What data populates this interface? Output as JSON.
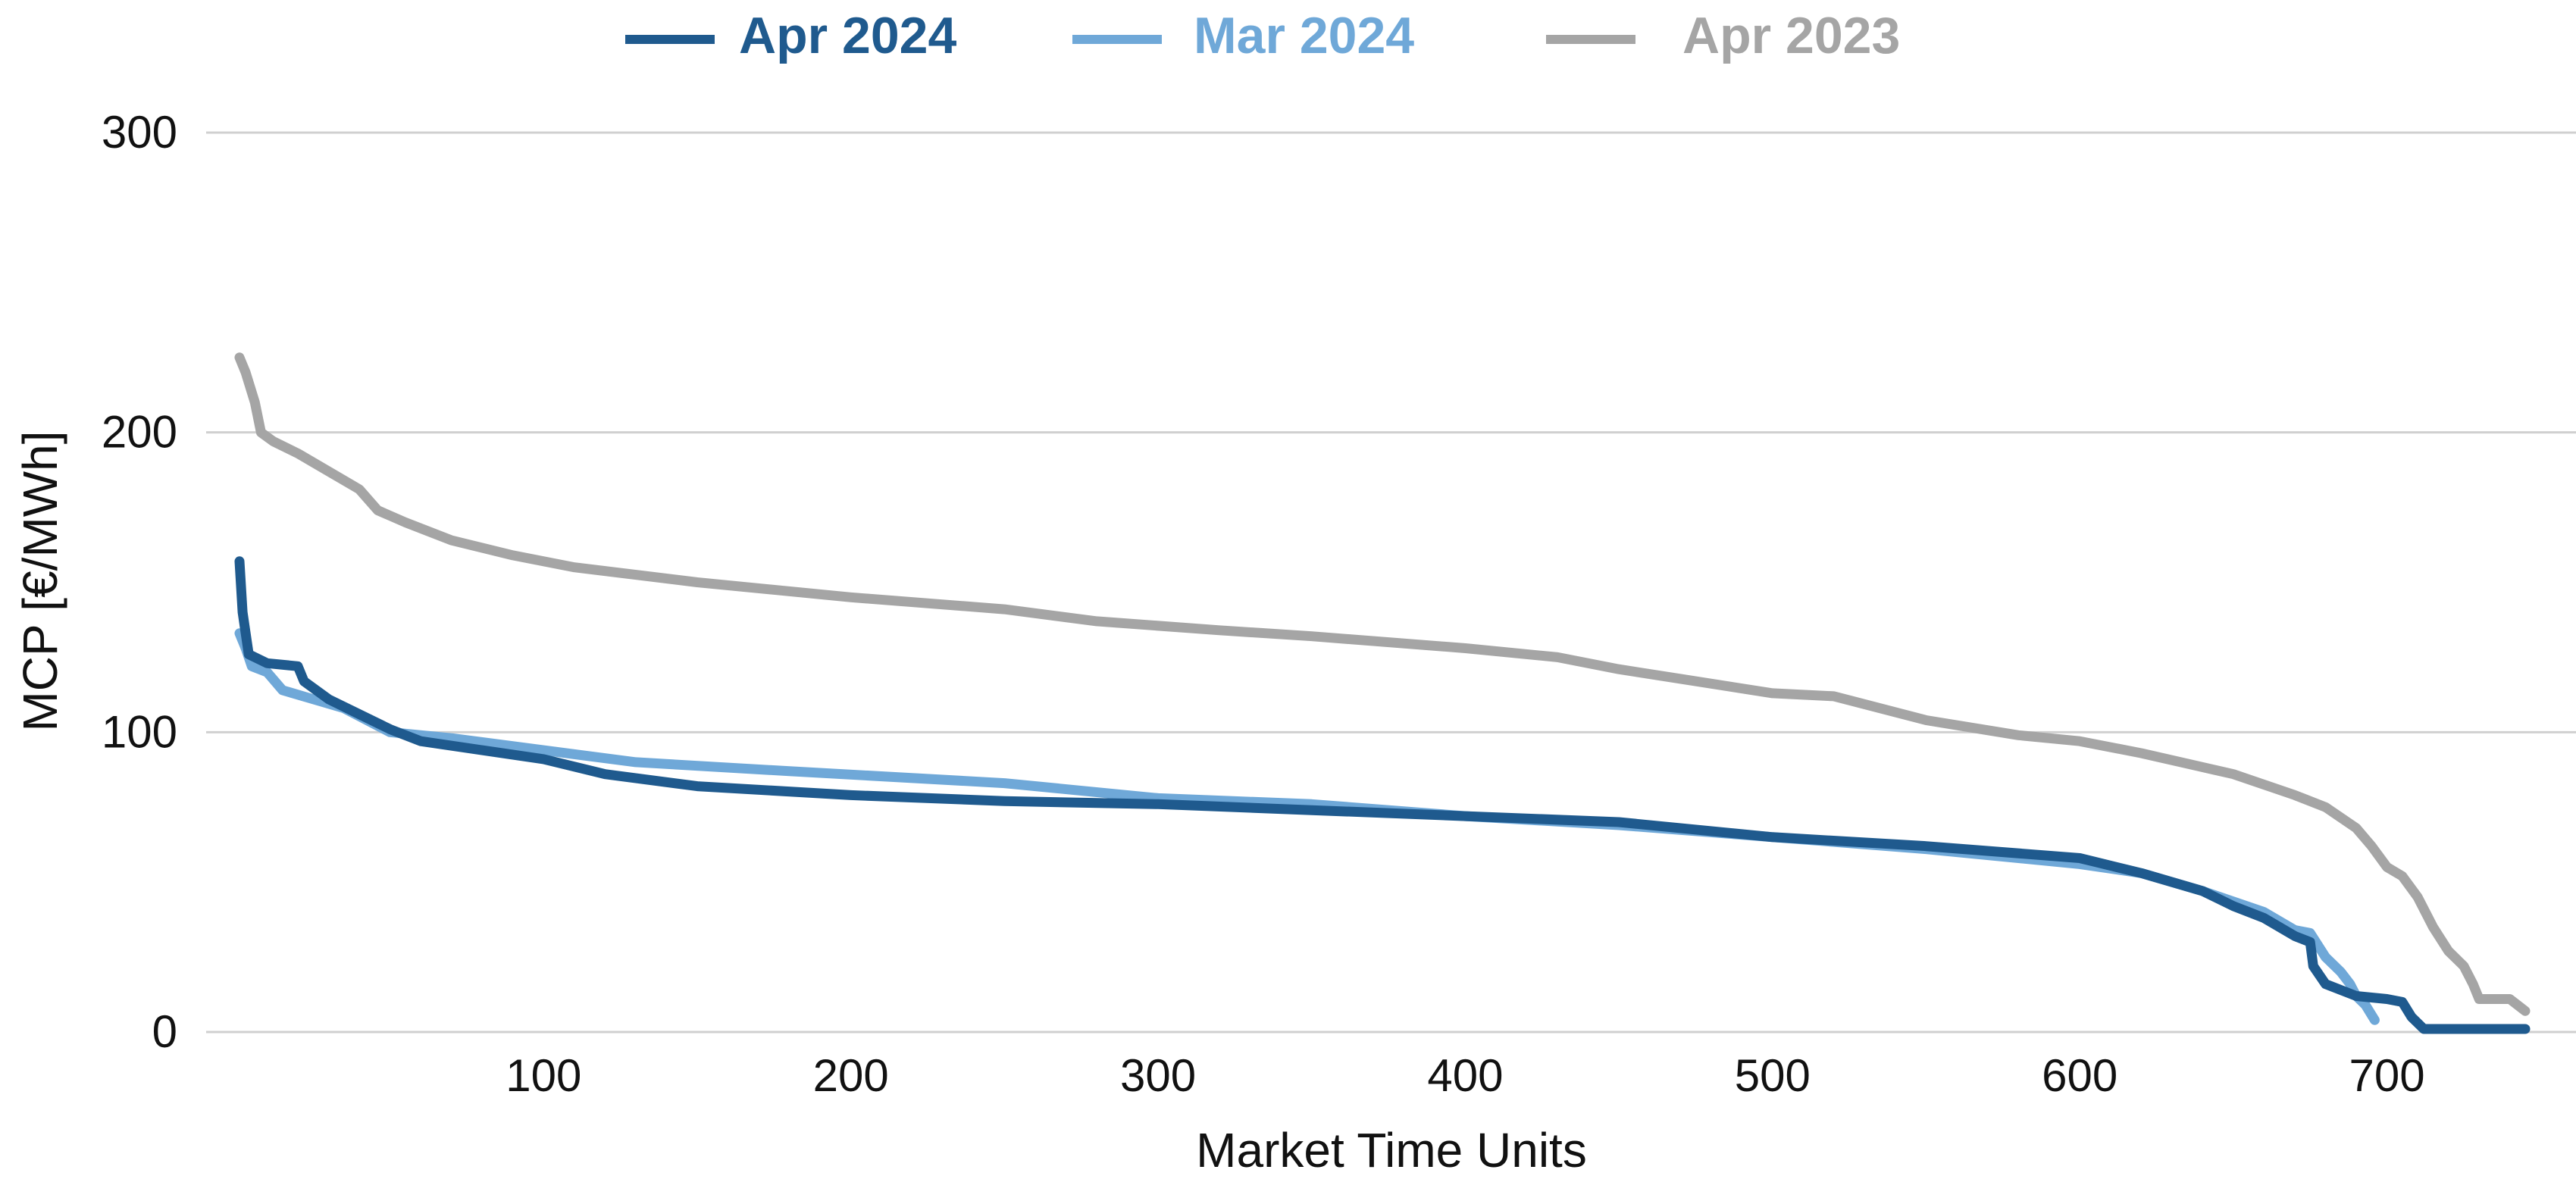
{
  "chart_data": {
    "type": "line",
    "title": "",
    "xlabel": "Market Time Units",
    "ylabel": "MCP [€/MWh]",
    "xlim": [
      1,
      745
    ],
    "ylim": [
      0,
      300
    ],
    "x_ticks": [
      100,
      200,
      300,
      400,
      500,
      600,
      700
    ],
    "x_tick_labels": [
      "100",
      "200",
      "300",
      "400",
      "500",
      "600",
      "700"
    ],
    "y_ticks": [
      0,
      100,
      200,
      300
    ],
    "y_tick_labels": [
      "0",
      "100",
      "200",
      "300"
    ],
    "grid": "horizontal",
    "legend_position": "top-center",
    "series": [
      {
        "name": "Apr 2024",
        "color": "#1f5a8e",
        "points": [
          [
            1,
            157
          ],
          [
            2,
            140
          ],
          [
            4,
            126
          ],
          [
            10,
            123
          ],
          [
            20,
            122
          ],
          [
            22,
            117
          ],
          [
            30,
            111
          ],
          [
            40,
            106
          ],
          [
            50,
            101
          ],
          [
            60,
            97
          ],
          [
            80,
            94
          ],
          [
            100,
            91
          ],
          [
            120,
            86
          ],
          [
            150,
            82
          ],
          [
            200,
            79
          ],
          [
            250,
            77
          ],
          [
            300,
            76
          ],
          [
            350,
            74
          ],
          [
            400,
            72
          ],
          [
            450,
            70
          ],
          [
            500,
            65
          ],
          [
            550,
            62
          ],
          [
            600,
            58
          ],
          [
            620,
            53
          ],
          [
            640,
            47
          ],
          [
            650,
            42
          ],
          [
            660,
            38
          ],
          [
            670,
            32
          ],
          [
            675,
            30
          ],
          [
            676,
            22
          ],
          [
            680,
            16
          ],
          [
            690,
            12
          ],
          [
            700,
            11
          ],
          [
            705,
            10
          ],
          [
            708,
            5
          ],
          [
            712,
            1
          ],
          [
            745,
            1
          ]
        ]
      },
      {
        "name": "Mar 2024",
        "color": "#6fa8d8",
        "points": [
          [
            1,
            133
          ],
          [
            3,
            128
          ],
          [
            5,
            122
          ],
          [
            10,
            120
          ],
          [
            15,
            114
          ],
          [
            25,
            111
          ],
          [
            35,
            108
          ],
          [
            50,
            100
          ],
          [
            70,
            98
          ],
          [
            100,
            94
          ],
          [
            130,
            90
          ],
          [
            180,
            87
          ],
          [
            250,
            83
          ],
          [
            300,
            78
          ],
          [
            350,
            76
          ],
          [
            400,
            72
          ],
          [
            450,
            69
          ],
          [
            500,
            65
          ],
          [
            550,
            61
          ],
          [
            600,
            56
          ],
          [
            620,
            53
          ],
          [
            640,
            47
          ],
          [
            660,
            40
          ],
          [
            670,
            34
          ],
          [
            675,
            33
          ],
          [
            680,
            25
          ],
          [
            685,
            20
          ],
          [
            688,
            16
          ],
          [
            690,
            12
          ],
          [
            693,
            9
          ],
          [
            696,
            4
          ]
        ]
      },
      {
        "name": "Apr 2023",
        "color": "#a5a5a5",
        "points": [
          [
            1,
            225
          ],
          [
            3,
            220
          ],
          [
            6,
            210
          ],
          [
            8,
            200
          ],
          [
            12,
            197
          ],
          [
            20,
            193
          ],
          [
            30,
            187
          ],
          [
            40,
            181
          ],
          [
            46,
            174
          ],
          [
            55,
            170
          ],
          [
            70,
            164
          ],
          [
            90,
            159
          ],
          [
            110,
            155
          ],
          [
            150,
            150
          ],
          [
            200,
            145
          ],
          [
            250,
            141
          ],
          [
            280,
            137
          ],
          [
            320,
            134
          ],
          [
            350,
            132
          ],
          [
            400,
            128
          ],
          [
            430,
            125
          ],
          [
            450,
            121
          ],
          [
            500,
            113
          ],
          [
            520,
            112
          ],
          [
            550,
            104
          ],
          [
            580,
            99
          ],
          [
            600,
            97
          ],
          [
            620,
            93
          ],
          [
            650,
            86
          ],
          [
            670,
            79
          ],
          [
            680,
            75
          ],
          [
            690,
            68
          ],
          [
            695,
            62
          ],
          [
            700,
            55
          ],
          [
            705,
            52
          ],
          [
            710,
            45
          ],
          [
            715,
            35
          ],
          [
            720,
            27
          ],
          [
            725,
            22
          ],
          [
            728,
            16
          ],
          [
            730,
            11
          ],
          [
            740,
            11
          ],
          [
            745,
            7
          ]
        ]
      }
    ]
  }
}
